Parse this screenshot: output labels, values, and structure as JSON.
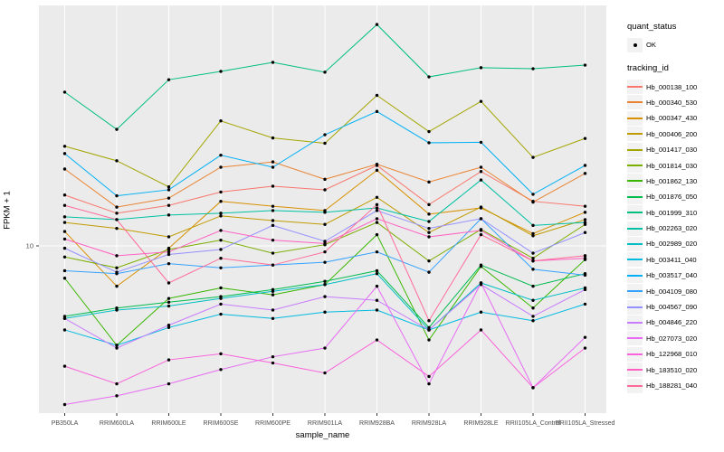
{
  "figure": {
    "background": "#FFFFFF",
    "panel_background": "#EBEBEB",
    "gridline_color": "#FFFFFF",
    "axis_text_color": "#4D4D4D",
    "point_color": "#000000"
  },
  "axes": {
    "x_title": "sample_name",
    "y_title": "FPKM + 1",
    "y_tick_label": "10"
  },
  "legend": {
    "quant_status_title": "quant_status",
    "quant_status_items": [
      {
        "label": "OK",
        "marker": "black-point"
      }
    ],
    "tracking_id_title": "tracking_id"
  },
  "chart_data": {
    "type": "line",
    "title": "",
    "xlabel": "sample_name",
    "ylabel": "FPKM + 1",
    "x_scale": "categorical",
    "y_scale": "log10",
    "y_ticks": [
      10
    ],
    "ylim": [
      2.3,
      75
    ],
    "grid": true,
    "legend_position": "right",
    "marker": "point",
    "categories": [
      "PB350LA",
      "RRIM600LA",
      "RRIM600LE",
      "RRIM600SE",
      "RRIM600PE",
      "RRIM901LA",
      "RRIM928BA",
      "RRIM928LA",
      "RRIM928LE",
      "RRII105LA_Control",
      "RRII105LA_Stressed"
    ],
    "series": [
      {
        "name": "Hb_000138_100",
        "color": "#F8766D",
        "values": [
          15.4,
          13.2,
          14.1,
          15.8,
          16.6,
          16.1,
          19.8,
          14.2,
          18.8,
          14.6,
          14.0
        ]
      },
      {
        "name": "Hb_000340_530",
        "color": "#EA8331",
        "values": [
          19.2,
          13.9,
          15.0,
          19.5,
          20.4,
          17.6,
          20.0,
          17.2,
          19.5,
          14.5,
          18.5
        ]
      },
      {
        "name": "Hb_000347_430",
        "color": "#D89000",
        "values": [
          11.3,
          7.1,
          9.8,
          14.6,
          14.0,
          13.5,
          19.0,
          13.1,
          13.8,
          11.1,
          13.3
        ]
      },
      {
        "name": "Hb_000406_200",
        "color": "#C09B00",
        "values": [
          12.2,
          11.6,
          10.8,
          12.9,
          12.4,
          12.0,
          15.1,
          11.2,
          13.9,
          10.9,
          12.5
        ]
      },
      {
        "name": "Hb_001417_030",
        "color": "#A3A500",
        "values": [
          23.3,
          20.6,
          16.5,
          28.9,
          25.0,
          23.9,
          35.9,
          26.4,
          34.1,
          21.2,
          24.9
        ]
      },
      {
        "name": "Hb_001814_030",
        "color": "#7CAE00",
        "values": [
          9.1,
          8.3,
          9.7,
          10.5,
          9.4,
          10.1,
          12.2,
          8.8,
          11.5,
          9.0,
          12.0
        ]
      },
      {
        "name": "Hb_001862_130",
        "color": "#39B600",
        "values": [
          7.6,
          4.3,
          6.4,
          7.0,
          6.6,
          7.2,
          11.0,
          4.5,
          8.4,
          5.9,
          8.9
        ]
      },
      {
        "name": "Hb_001876_050",
        "color": "#00BB4E",
        "values": [
          5.5,
          5.9,
          6.2,
          6.5,
          6.9,
          7.4,
          8.1,
          5.0,
          8.5,
          7.1,
          7.9
        ]
      },
      {
        "name": "Hb_001999_310",
        "color": "#00BF7D",
        "values": [
          36.9,
          26.9,
          41.0,
          44.0,
          47.5,
          43.7,
          65.5,
          42.0,
          45.4,
          45.0,
          46.4
        ]
      },
      {
        "name": "Hb_002263_020",
        "color": "#00C1A3",
        "values": [
          12.8,
          12.5,
          13.0,
          13.2,
          13.5,
          13.3,
          13.8,
          12.3,
          17.5,
          11.9,
          12.2
        ]
      },
      {
        "name": "Hb_002989_020",
        "color": "#00BFC4",
        "values": [
          5.4,
          5.8,
          6.0,
          6.4,
          6.8,
          7.2,
          7.9,
          4.9,
          7.3,
          6.3,
          7.0
        ]
      },
      {
        "name": "Hb_003411_040",
        "color": "#00BAE0",
        "values": [
          4.9,
          4.3,
          5.0,
          5.6,
          5.4,
          5.7,
          5.8,
          4.9,
          5.7,
          5.3,
          6.1
        ]
      },
      {
        "name": "Hb_003517_040",
        "color": "#00B0F6",
        "values": [
          21.9,
          15.3,
          16.1,
          21.6,
          19.5,
          25.7,
          31.3,
          24.0,
          24.1,
          15.5,
          19.8
        ]
      },
      {
        "name": "Hb_004109_080",
        "color": "#35A2FF",
        "values": [
          8.1,
          7.9,
          8.6,
          8.3,
          8.5,
          8.7,
          9.5,
          8.0,
          12.6,
          8.2,
          7.8
        ]
      },
      {
        "name": "Hb_004567_090",
        "color": "#9590FF",
        "values": [
          9.8,
          8.0,
          9.3,
          9.7,
          11.9,
          10.4,
          13.5,
          11.6,
          12.6,
          9.4,
          11.2
        ]
      },
      {
        "name": "Hb_004846_220",
        "color": "#C77CFF",
        "values": [
          5.4,
          4.2,
          5.1,
          6.1,
          5.8,
          6.5,
          6.3,
          4.9,
          7.2,
          5.5,
          6.9
        ]
      },
      {
        "name": "Hb_027073_020",
        "color": "#E76BF3",
        "values": [
          2.6,
          2.8,
          3.1,
          3.5,
          3.9,
          4.2,
          7.1,
          3.1,
          7.3,
          3.0,
          4.6
        ]
      },
      {
        "name": "Hb_122968_010",
        "color": "#FA62DB",
        "values": [
          3.6,
          3.1,
          3.8,
          4.0,
          3.7,
          3.4,
          4.5,
          3.3,
          4.9,
          3.0,
          4.2
        ]
      },
      {
        "name": "Hb_183510_020",
        "color": "#FF61C3",
        "values": [
          10.6,
          9.2,
          9.5,
          11.4,
          10.5,
          10.2,
          12.6,
          10.8,
          11.4,
          8.8,
          9.0
        ]
      },
      {
        "name": "Hb_188281_040",
        "color": "#FF6A98",
        "values": [
          14.1,
          12.5,
          7.3,
          9.0,
          8.5,
          9.5,
          14.2,
          5.3,
          11.0,
          8.8,
          9.2
        ]
      }
    ]
  }
}
